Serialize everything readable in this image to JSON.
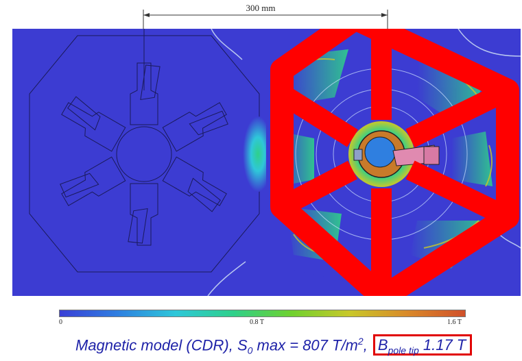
{
  "dimension": {
    "label": "300 mm"
  },
  "colorbar": {
    "min_label": "0",
    "mid_label": "0.8 T",
    "max_label": "1.6 T",
    "colors": [
      "#3a3fd6",
      "#2f7fe0",
      "#2fc7d9",
      "#2fd08a",
      "#6fd12f",
      "#c8c82a",
      "#d98a2a",
      "#d0502a"
    ]
  },
  "caption": {
    "part1": "Magnetic model (CDR), S",
    "sub1": "0",
    "part2": " max = 807 T/m",
    "sup1": "2",
    "part3": ", ",
    "b_main": "B",
    "b_sub": "pole tip",
    "b_value": " 1.17 T"
  },
  "colors": {
    "field_background": "#3c3cd2",
    "overlay_red": "#ff0000",
    "caption_text": "#1e22a8",
    "highlight_box": "#e10000"
  }
}
